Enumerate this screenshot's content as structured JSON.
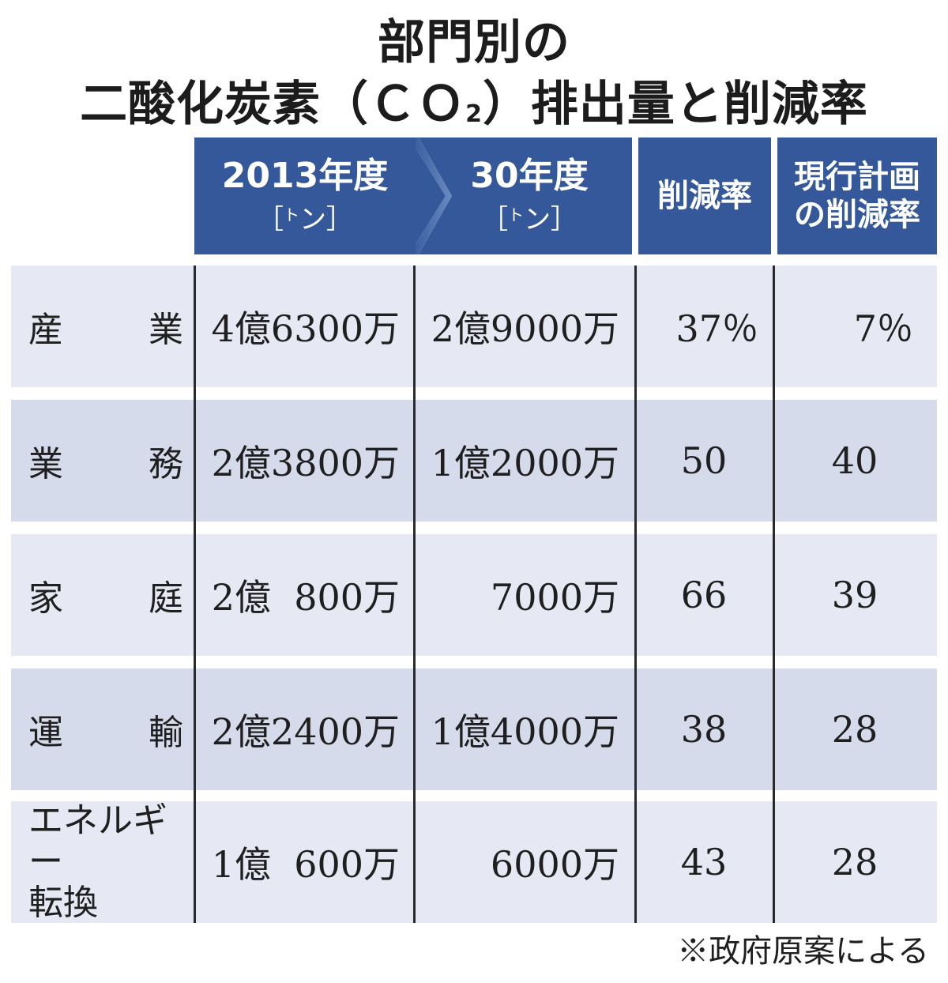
{
  "title": {
    "line1": "部門別の",
    "line2_prefix": "二酸化炭素（ＣＯ",
    "line2_sub": "2",
    "line2_suffix": "）排出量と削減率"
  },
  "columns": {
    "y2013": {
      "label": "2013年度",
      "unit_open": "［",
      "unit_small": "ト",
      "unit_main": "ン",
      "unit_close": "］"
    },
    "y2030": {
      "label": "30年度",
      "unit_open": "［",
      "unit_small": "ト",
      "unit_main": "ン",
      "unit_close": "］"
    },
    "reduction": {
      "label": "削減率"
    },
    "current_plan": {
      "line1": "現行計画",
      "line2": "の削減率"
    }
  },
  "rows": [
    {
      "sector_a": "産",
      "sector_b": "業",
      "y2013": "4億6300万",
      "y2030": "2億9000万",
      "reduction": "37％",
      "current_plan": "7％"
    },
    {
      "sector_a": "業",
      "sector_b": "務",
      "y2013": "2億3800万",
      "y2030": "1億2000万",
      "reduction": "50",
      "current_plan": "40"
    },
    {
      "sector_a": "家",
      "sector_b": "庭",
      "y2013": "2億  800万",
      "y2030": "7000万",
      "reduction": "66",
      "current_plan": "39"
    },
    {
      "sector_a": "運",
      "sector_b": "輸",
      "y2013": "2億2400万",
      "y2030": "1億4000万",
      "reduction": "38",
      "current_plan": "28"
    },
    {
      "sector_line1": "エネルギー",
      "sector_line2": "転換",
      "y2013": "1億  600万",
      "y2030": "6000万",
      "reduction": "43",
      "current_plan": "28"
    }
  ],
  "note": "※政府原案による",
  "colors": {
    "header_bg": "#34589a",
    "row_light": "#e6e9f3",
    "row_dark": "#d6dbec"
  },
  "chart_data": {
    "type": "table",
    "title": "部門別の二酸化炭素（ＣＯ2）排出量と削減率",
    "columns": [
      "2013年度［トン］",
      "30年度［トン］",
      "削減率",
      "現行計画の削減率"
    ],
    "rows": [
      [
        "産業",
        "4億6300万",
        "2億9000万",
        "37％",
        "7％"
      ],
      [
        "業務",
        "2億3800万",
        "1億2000万",
        "50",
        "40"
      ],
      [
        "家庭",
        "2億 800万",
        "7000万",
        "66",
        "39"
      ],
      [
        "運輸",
        "2億2400万",
        "1億4000万",
        "38",
        "28"
      ],
      [
        "エネルギー転換",
        "1億 600万",
        "6000万",
        "43",
        "28"
      ]
    ],
    "note": "※政府原案による"
  }
}
